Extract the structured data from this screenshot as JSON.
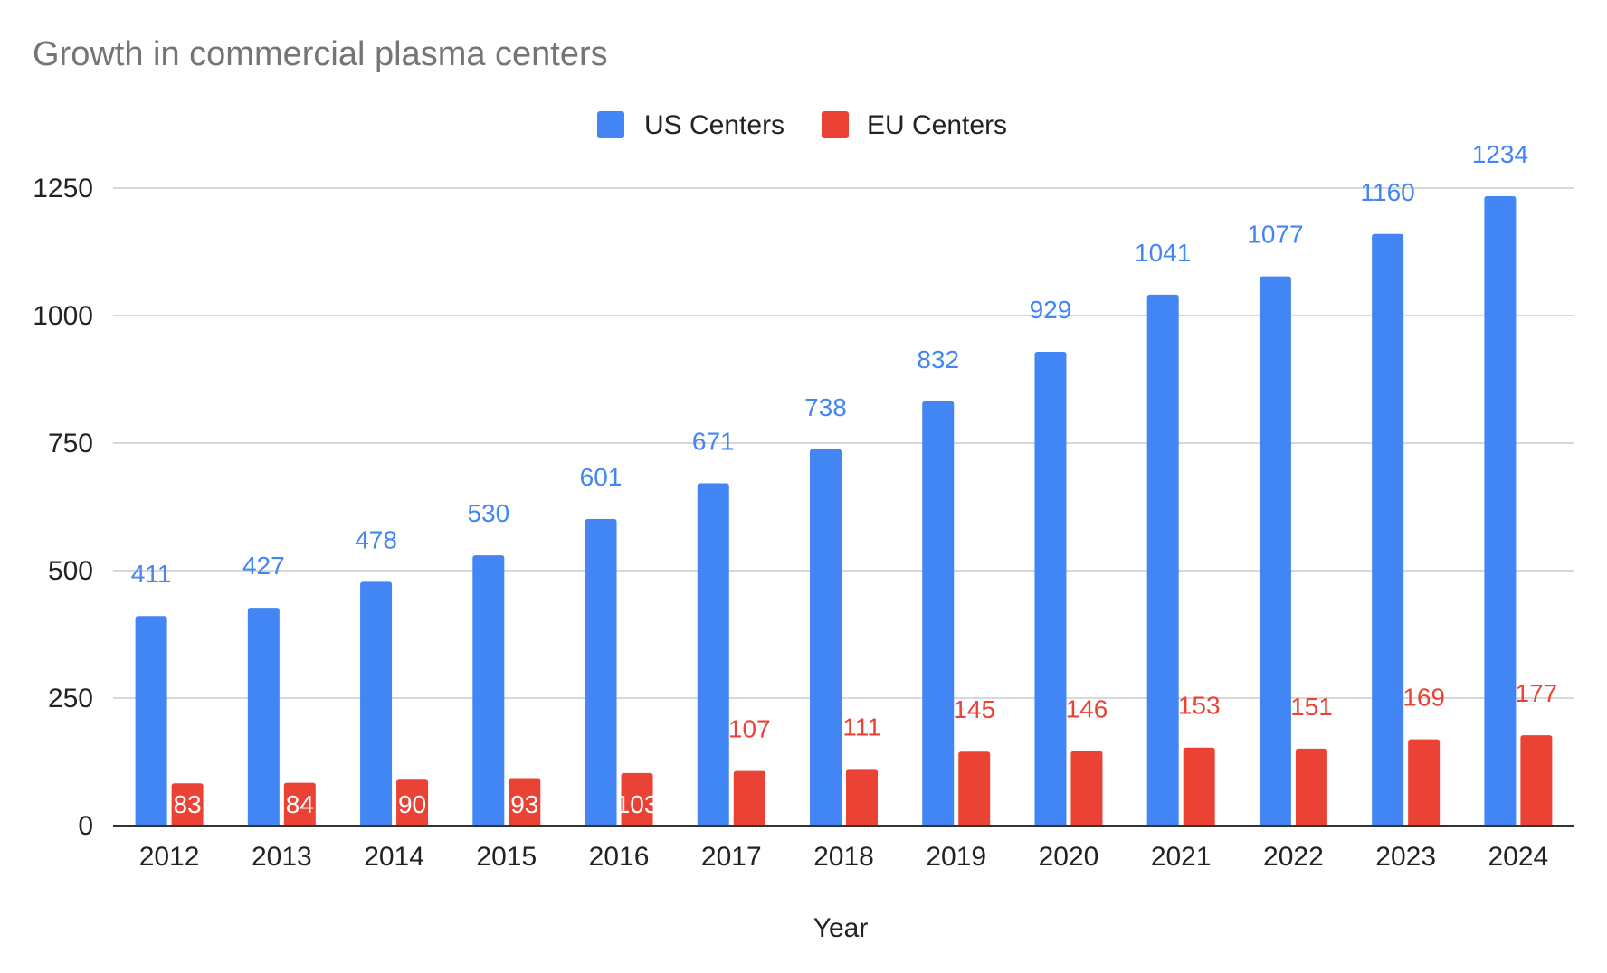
{
  "chart_data": {
    "type": "bar",
    "title": "Growth in commercial plasma centers",
    "xlabel": "Year",
    "ylabel": "",
    "ylim": [
      0,
      1250
    ],
    "yticks": [
      0,
      250,
      500,
      750,
      1000,
      1250
    ],
    "grid": true,
    "legend_position": "top-center",
    "categories": [
      "2012",
      "2013",
      "2014",
      "2015",
      "2016",
      "2017",
      "2018",
      "2019",
      "2020",
      "2021",
      "2022",
      "2023",
      "2024"
    ],
    "series": [
      {
        "name": "US Centers",
        "color": "#4285f4",
        "values": [
          411,
          427,
          478,
          530,
          601,
          671,
          738,
          832,
          929,
          1041,
          1077,
          1160,
          1234
        ]
      },
      {
        "name": "EU Centers",
        "color": "#ea4335",
        "values": [
          83,
          84,
          90,
          93,
          103,
          107,
          111,
          145,
          146,
          153,
          151,
          169,
          177
        ]
      }
    ]
  }
}
